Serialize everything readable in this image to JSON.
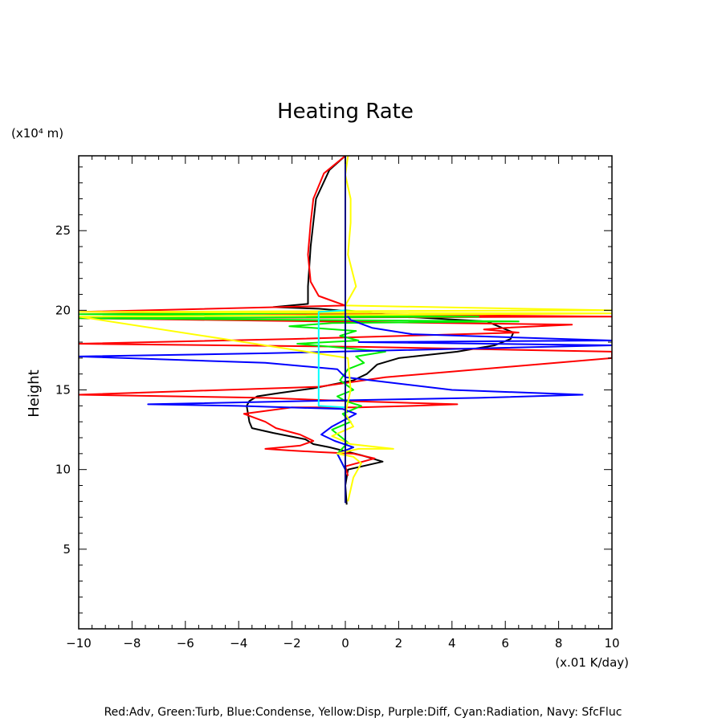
{
  "chart_data": {
    "type": "line",
    "title": "Heating Rate",
    "ylabel": "Height",
    "y_unit_label": "(x10⁴ m)",
    "x_unit_label": "(x.01 K/day)",
    "xlim": [
      -10,
      10
    ],
    "ylim": [
      0,
      29.7
    ],
    "x_ticks": [
      -10,
      -8,
      -6,
      -4,
      -2,
      0,
      2,
      4,
      6,
      8,
      10
    ],
    "y_ticks": [
      5,
      10,
      15,
      20,
      25
    ],
    "legend_text": "Red:Adv, Green:Turb, Blue:Condense, Yellow:Disp, Purple:Diff, Cyan:Radiation, Navy: SfcFluc",
    "grid": false,
    "series": [
      {
        "color": "#000000",
        "points": [
          [
            0.05,
            7.8
          ],
          [
            0.0,
            9.0
          ],
          [
            0.1,
            10.0
          ],
          [
            1.4,
            10.5
          ],
          [
            0.6,
            10.9
          ],
          [
            -0.6,
            11.4
          ],
          [
            -1.2,
            11.6
          ],
          [
            -1.5,
            11.9
          ],
          [
            -2.7,
            12.3
          ],
          [
            -3.5,
            12.6
          ],
          [
            -3.6,
            13.0
          ],
          [
            -3.7,
            14.0
          ],
          [
            -3.6,
            14.3
          ],
          [
            -3.3,
            14.6
          ],
          [
            -2.5,
            14.8
          ],
          [
            -1.2,
            15.1
          ],
          [
            0.3,
            15.6
          ],
          [
            0.8,
            16.0
          ],
          [
            1.2,
            16.6
          ],
          [
            2.0,
            17.0
          ],
          [
            4.2,
            17.4
          ],
          [
            5.6,
            17.8
          ],
          [
            6.2,
            18.2
          ],
          [
            6.3,
            18.6
          ],
          [
            5.3,
            19.3
          ],
          [
            2.2,
            19.6
          ],
          [
            0.4,
            19.9
          ],
          [
            -1.0,
            20.1
          ],
          [
            -2.7,
            20.2
          ],
          [
            -1.4,
            20.4
          ],
          [
            -1.4,
            21.5
          ],
          [
            -1.3,
            24.0
          ],
          [
            -1.1,
            27.0
          ],
          [
            -0.6,
            28.8
          ],
          [
            0.0,
            29.7
          ]
        ]
      },
      {
        "color": "#ff0000",
        "points": [
          [
            0.1,
            9.6
          ],
          [
            0.0,
            10.2
          ],
          [
            1.1,
            10.7
          ],
          [
            0.3,
            11.0
          ],
          [
            -1.0,
            11.1
          ],
          [
            -2.1,
            11.2
          ],
          [
            -3.0,
            11.3
          ],
          [
            -1.7,
            11.5
          ],
          [
            -1.2,
            11.8
          ],
          [
            -1.7,
            12.2
          ],
          [
            -2.6,
            12.6
          ],
          [
            -3.0,
            13.0
          ],
          [
            -3.8,
            13.5
          ],
          [
            -2.0,
            13.9
          ],
          [
            0.5,
            13.9
          ],
          [
            2.5,
            14.0
          ],
          [
            4.2,
            14.1
          ],
          [
            0.1,
            14.3
          ],
          [
            -3.0,
            14.5
          ],
          [
            -10.0,
            14.7
          ],
          [
            -1.0,
            15.2
          ],
          [
            1.5,
            15.8
          ],
          [
            10.0,
            17.0
          ],
          [
            10.0,
            17.4
          ],
          [
            0.8,
            17.7
          ],
          [
            -10.0,
            17.9
          ],
          [
            -2.0,
            18.2
          ],
          [
            6.5,
            18.6
          ],
          [
            5.2,
            18.8
          ],
          [
            6.0,
            18.9
          ],
          [
            8.5,
            19.1
          ],
          [
            -10.0,
            19.5
          ],
          [
            10.0,
            19.6
          ],
          [
            -10.0,
            19.9
          ],
          [
            0.0,
            20.3
          ],
          [
            -0.5,
            20.6
          ],
          [
            -1.0,
            20.9
          ],
          [
            -1.3,
            21.8
          ],
          [
            -1.4,
            23.5
          ],
          [
            -1.3,
            25.5
          ],
          [
            -1.2,
            27.0
          ],
          [
            -0.8,
            28.6
          ],
          [
            0.0,
            29.7
          ]
        ]
      },
      {
        "color": "#00ee00",
        "points": [
          [
            0.0,
            10.0
          ],
          [
            -0.3,
            11.0
          ],
          [
            0.1,
            11.7
          ],
          [
            -0.5,
            12.5
          ],
          [
            0.2,
            13.0
          ],
          [
            -0.1,
            13.5
          ],
          [
            0.6,
            14.0
          ],
          [
            0.0,
            14.3
          ],
          [
            -0.3,
            14.6
          ],
          [
            0.3,
            15.0
          ],
          [
            -0.2,
            15.6
          ],
          [
            0.1,
            16.3
          ],
          [
            0.7,
            16.7
          ],
          [
            0.4,
            17.1
          ],
          [
            1.5,
            17.4
          ],
          [
            -1.8,
            17.9
          ],
          [
            0.5,
            18.1
          ],
          [
            -0.2,
            18.4
          ],
          [
            0.4,
            18.7
          ],
          [
            -2.1,
            19.0
          ],
          [
            -0.5,
            19.2
          ],
          [
            6.5,
            19.3
          ],
          [
            -10.0,
            19.5
          ],
          [
            5.0,
            19.6
          ],
          [
            -10.0,
            19.75
          ],
          [
            1.0,
            19.85
          ],
          [
            0.0,
            20.0
          ]
        ]
      },
      {
        "color": "#0000ff",
        "points": [
          [
            0.0,
            10.0
          ],
          [
            -0.3,
            11.0
          ],
          [
            0.3,
            11.4
          ],
          [
            -0.4,
            11.8
          ],
          [
            -0.9,
            12.2
          ],
          [
            -0.5,
            12.7
          ],
          [
            0.4,
            13.5
          ],
          [
            -0.1,
            13.8
          ],
          [
            -4.0,
            14.0
          ],
          [
            -7.4,
            14.1
          ],
          [
            -1.5,
            14.3
          ],
          [
            5.0,
            14.5
          ],
          [
            8.9,
            14.7
          ],
          [
            4.0,
            15.0
          ],
          [
            0.0,
            15.8
          ],
          [
            -0.3,
            16.3
          ],
          [
            -3.0,
            16.7
          ],
          [
            -10.0,
            17.1
          ],
          [
            -3.0,
            17.3
          ],
          [
            10.0,
            17.8
          ],
          [
            0.5,
            18.0
          ],
          [
            10.0,
            18.1
          ],
          [
            2.5,
            18.5
          ],
          [
            1.0,
            18.9
          ],
          [
            0.2,
            19.4
          ],
          [
            0.0,
            19.8
          ]
        ]
      },
      {
        "color": "#ffff00",
        "points": [
          [
            0.1,
            8.0
          ],
          [
            0.3,
            9.5
          ],
          [
            0.6,
            10.4
          ],
          [
            0.3,
            10.8
          ],
          [
            -0.3,
            11.0
          ],
          [
            0.5,
            11.3
          ],
          [
            1.8,
            11.3
          ],
          [
            0.2,
            11.6
          ],
          [
            -0.5,
            12.1
          ],
          [
            0.3,
            12.7
          ],
          [
            0.0,
            13.5
          ],
          [
            0.2,
            15.0
          ],
          [
            0.1,
            17.0
          ],
          [
            -10.0,
            19.6
          ],
          [
            10.0,
            19.8
          ],
          [
            -10.0,
            19.9
          ],
          [
            10.0,
            20.0
          ],
          [
            0.0,
            20.3
          ],
          [
            0.4,
            21.5
          ],
          [
            0.1,
            23.5
          ],
          [
            0.2,
            25.5
          ],
          [
            0.2,
            27.0
          ],
          [
            0.0,
            28.5
          ],
          [
            0.1,
            29.7
          ]
        ]
      },
      {
        "color": "#00ffff",
        "points": [
          [
            0.0,
            13.9
          ],
          [
            -1.0,
            14.0
          ],
          [
            -1.0,
            19.9
          ],
          [
            0.0,
            20.0
          ]
        ]
      },
      {
        "color": "#000080",
        "points": [
          [
            0.0,
            7.9
          ],
          [
            0.0,
            29.7
          ]
        ]
      }
    ]
  }
}
